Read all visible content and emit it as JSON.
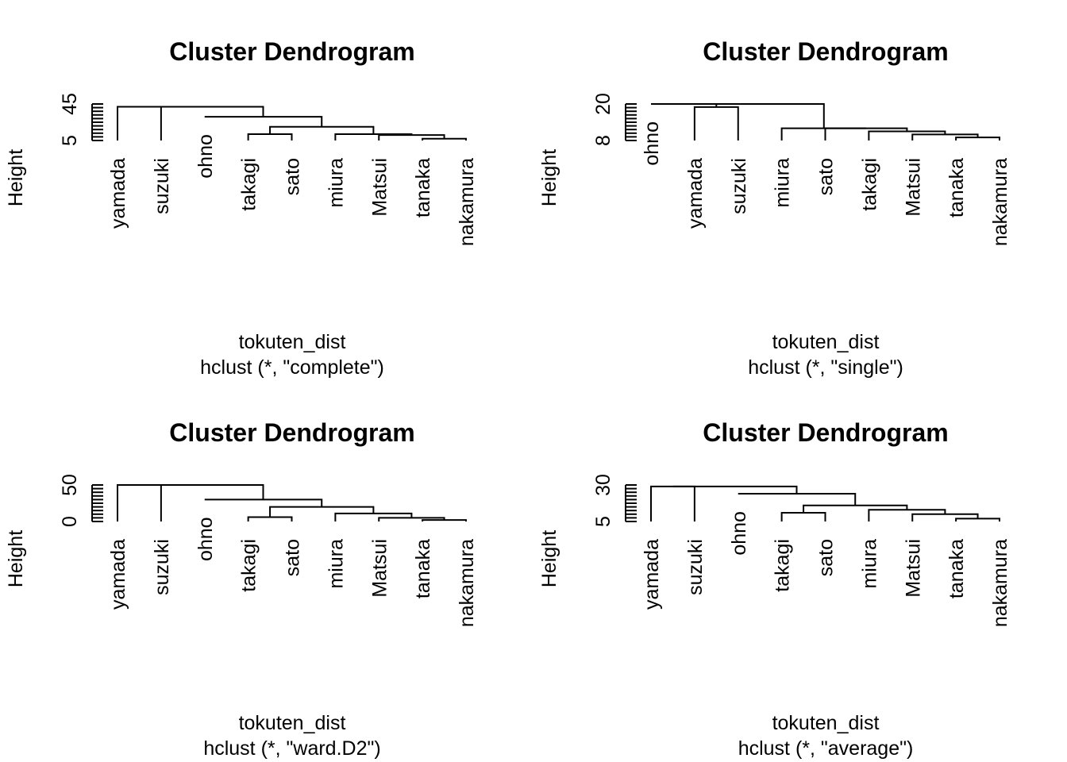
{
  "chart_data": [
    {
      "type": "dendrogram",
      "title": "Cluster Dendrogram",
      "xlabel": "tokuten_dist",
      "sublabel": "hclust (*, \"complete\")",
      "ylabel": "Height",
      "yticks": [
        5,
        45
      ],
      "ylim": [
        5,
        45
      ],
      "leaves": [
        "yamada",
        "suzuki",
        "ohno",
        "takagi",
        "sato",
        "miura",
        "Matsui",
        "tanaka",
        "nakamura"
      ],
      "leaf_heights": [
        5,
        5,
        31,
        5,
        5,
        5,
        5,
        5,
        5
      ],
      "merges": [
        {
          "left": "L:tanaka",
          "right": "L:nakamura",
          "height": 7
        },
        {
          "left": "L:Matsui",
          "right": "N:0",
          "height": 11
        },
        {
          "left": "L:takagi",
          "right": "L:sato",
          "height": 12
        },
        {
          "left": "L:miura",
          "right": "N:1",
          "height": 12
        },
        {
          "left": "N:2",
          "right": "N:3",
          "height": 20
        },
        {
          "left": "L:ohno",
          "right": "N:4",
          "height": 31
        },
        {
          "left": "L:yamada",
          "right": "L:suzuki",
          "height": 42
        },
        {
          "left": "N:6",
          "right": "N:5",
          "height": 42
        }
      ]
    },
    {
      "type": "dendrogram",
      "title": "Cluster Dendrogram",
      "xlabel": "tokuten_dist",
      "sublabel": "hclust (*, \"single\")",
      "ylabel": "Height",
      "yticks": [
        8,
        20
      ],
      "ylim": [
        8,
        20
      ],
      "leaves": [
        "ohno",
        "yamada",
        "suzuki",
        "miura",
        "sato",
        "takagi",
        "Matsui",
        "tanaka",
        "nakamura"
      ],
      "leaf_heights": [
        20,
        8,
        8,
        8,
        8,
        8,
        8,
        8,
        8
      ],
      "merges": [
        {
          "left": "L:tanaka",
          "right": "L:nakamura",
          "height": 9
        },
        {
          "left": "L:Matsui",
          "right": "N:0",
          "height": 10
        },
        {
          "left": "L:takagi",
          "right": "N:1",
          "height": 11
        },
        {
          "left": "L:sato",
          "right": "N:2",
          "height": 12
        },
        {
          "left": "L:miura",
          "right": "N:3",
          "height": 12
        },
        {
          "left": "L:yamada",
          "right": "L:suzuki",
          "height": 19
        },
        {
          "left": "N:5",
          "right": "N:4",
          "height": 20
        },
        {
          "left": "L:ohno",
          "right": "N:6",
          "height": 20
        }
      ]
    },
    {
      "type": "dendrogram",
      "title": "Cluster Dendrogram",
      "xlabel": "tokuten_dist",
      "sublabel": "hclust (*, \"ward.D2\")",
      "ylabel": "Height",
      "yticks": [
        0,
        50
      ],
      "ylim": [
        0,
        50
      ],
      "leaves": [
        "yamada",
        "suzuki",
        "ohno",
        "takagi",
        "sato",
        "miura",
        "Matsui",
        "tanaka",
        "nakamura"
      ],
      "leaf_heights": [
        0,
        0,
        30,
        0,
        0,
        0,
        0,
        0,
        0
      ],
      "merges": [
        {
          "left": "L:tanaka",
          "right": "L:nakamura",
          "height": 2
        },
        {
          "left": "L:Matsui",
          "right": "N:0",
          "height": 5
        },
        {
          "left": "L:takagi",
          "right": "L:sato",
          "height": 6
        },
        {
          "left": "L:miura",
          "right": "N:1",
          "height": 11
        },
        {
          "left": "N:2",
          "right": "N:3",
          "height": 20
        },
        {
          "left": "L:ohno",
          "right": "N:4",
          "height": 30
        },
        {
          "left": "L:yamada",
          "right": "L:suzuki",
          "height": 50
        },
        {
          "left": "N:6",
          "right": "N:5",
          "height": 50
        }
      ]
    },
    {
      "type": "dendrogram",
      "title": "Cluster Dendrogram",
      "xlabel": "tokuten_dist",
      "sublabel": "hclust (*, \"average\")",
      "ylabel": "Height",
      "yticks": [
        5,
        30
      ],
      "ylim": [
        5,
        30
      ],
      "leaves": [
        "yamada",
        "suzuki",
        "ohno",
        "takagi",
        "sato",
        "miura",
        "Matsui",
        "tanaka",
        "nakamura"
      ],
      "leaf_heights": [
        5,
        5,
        24,
        5,
        5,
        5,
        5,
        5,
        5
      ],
      "merges": [
        {
          "left": "L:tanaka",
          "right": "L:nakamura",
          "height": 7
        },
        {
          "left": "L:Matsui",
          "right": "N:0",
          "height": 10
        },
        {
          "left": "L:takagi",
          "right": "L:sato",
          "height": 11
        },
        {
          "left": "L:miura",
          "right": "N:1",
          "height": 13
        },
        {
          "left": "N:2",
          "right": "N:3",
          "height": 16
        },
        {
          "left": "L:ohno",
          "right": "N:4",
          "height": 24
        },
        {
          "left": "L:yamada",
          "right": "L:suzuki",
          "height": 29
        },
        {
          "left": "N:6",
          "right": "N:5",
          "height": 29
        }
      ]
    }
  ]
}
